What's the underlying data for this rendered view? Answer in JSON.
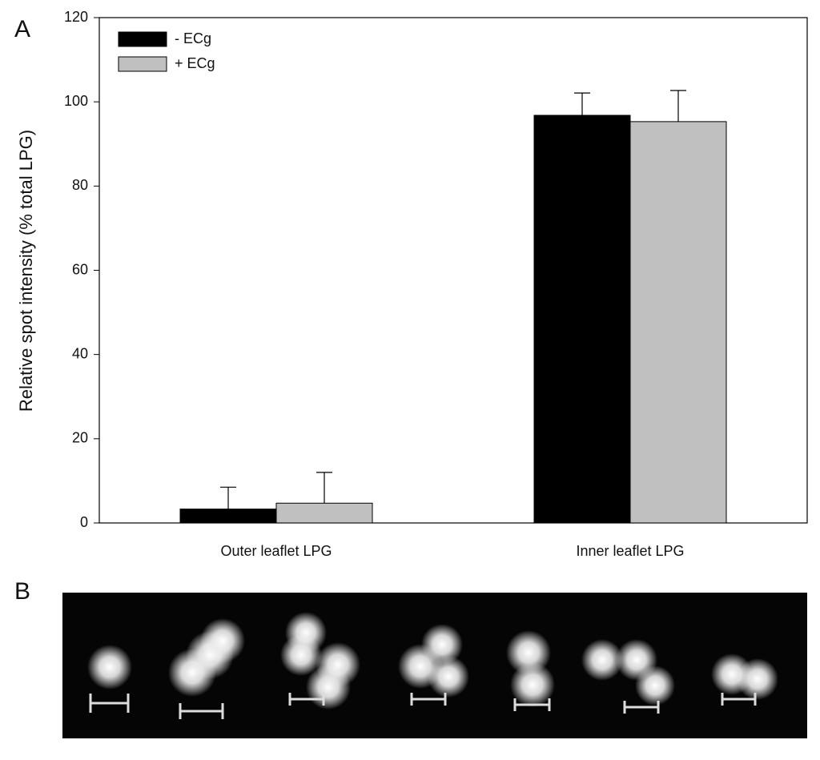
{
  "panel_a_label": "A",
  "panel_b_label": "B",
  "chart_data": {
    "type": "bar",
    "ylabel": "Relative spot intensity (% total LPG)",
    "categories": [
      "Outer leaflet LPG",
      "Inner leaflet LPG"
    ],
    "series": [
      {
        "name": "- ECg",
        "color": "#000000",
        "values": [
          3.3,
          96.8
        ],
        "errors": [
          5.2,
          5.3
        ]
      },
      {
        "name": "+ ECg",
        "color": "#c0c0c0",
        "values": [
          4.7,
          95.3
        ],
        "errors": [
          7.3,
          7.4
        ]
      }
    ],
    "ylim": [
      0,
      120
    ],
    "yticks": [
      0,
      20,
      40,
      60,
      80,
      100,
      120
    ],
    "legend": "upper left"
  }
}
